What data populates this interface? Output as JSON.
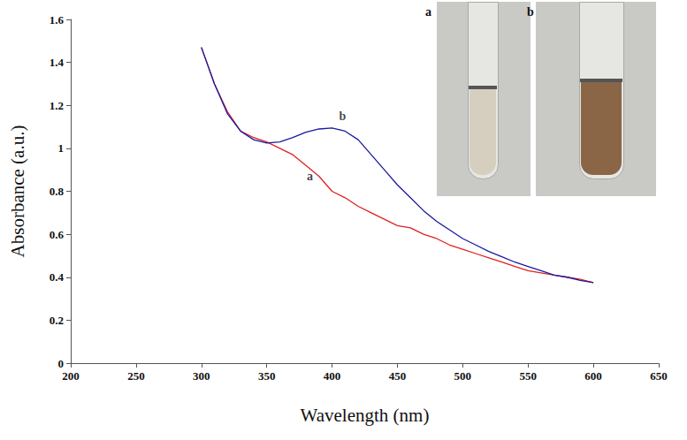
{
  "chart_data": {
    "type": "line",
    "x_label": "Wavelength (nm)",
    "y_label": "Absorbance (a.u.)",
    "x": [
      300,
      310,
      320,
      330,
      340,
      350,
      360,
      370,
      380,
      390,
      400,
      410,
      420,
      430,
      440,
      450,
      460,
      470,
      480,
      490,
      500,
      510,
      520,
      530,
      540,
      550,
      560,
      570,
      580,
      590,
      600
    ],
    "series": [
      {
        "name": "a",
        "color": "#e02020",
        "values": [
          1.47,
          1.3,
          1.17,
          1.08,
          1.05,
          1.03,
          1.0,
          0.97,
          0.92,
          0.87,
          0.8,
          0.77,
          0.73,
          0.7,
          0.67,
          0.64,
          0.63,
          0.6,
          0.58,
          0.55,
          0.53,
          0.51,
          0.49,
          0.47,
          0.45,
          0.43,
          0.42,
          0.41,
          0.4,
          0.39,
          0.375
        ]
      },
      {
        "name": "b",
        "color": "#1a1aa0",
        "values": [
          1.47,
          1.3,
          1.16,
          1.08,
          1.04,
          1.025,
          1.03,
          1.05,
          1.075,
          1.09,
          1.095,
          1.08,
          1.04,
          0.97,
          0.9,
          0.83,
          0.77,
          0.71,
          0.66,
          0.62,
          0.58,
          0.55,
          0.52,
          0.495,
          0.47,
          0.45,
          0.43,
          0.41,
          0.4,
          0.385,
          0.375
        ]
      }
    ],
    "annotations": [
      {
        "text": "a",
        "x": 383,
        "y": 0.87
      },
      {
        "text": "b",
        "x": 408,
        "y": 1.15
      }
    ],
    "insets": [
      {
        "label": "a",
        "color": "#d6cfc0"
      },
      {
        "label": "b",
        "color": "#8a6646"
      }
    ],
    "xlim": [
      200,
      650
    ],
    "xticks": [
      200,
      250,
      300,
      350,
      400,
      450,
      500,
      550,
      600,
      650
    ],
    "ylim": [
      0,
      1.6
    ],
    "yticks": [
      0,
      0.2,
      0.4,
      0.6,
      0.8,
      1,
      1.2,
      1.4,
      1.6
    ],
    "grid": false
  }
}
